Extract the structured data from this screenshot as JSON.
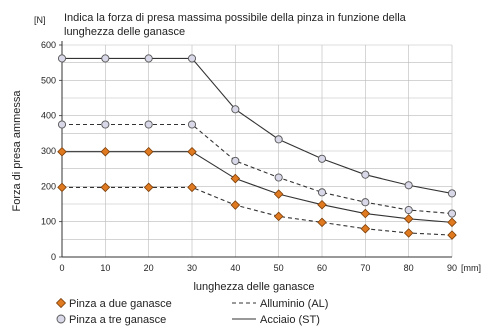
{
  "chart_data": {
    "type": "line",
    "title_lines": [
      "Indica la forza di presa massima possibile della pinza in funzione della",
      "lunghezza delle ganasce"
    ],
    "y_unit": "[N]",
    "x_unit": "[mm]",
    "xlabel": "lunghezza delle ganasce",
    "ylabel": "Forza di presa ammessa",
    "x": [
      0,
      10,
      20,
      30,
      40,
      50,
      60,
      70,
      80,
      90
    ],
    "xlim": [
      0,
      90
    ],
    "ylim": [
      0,
      600
    ],
    "x_ticks": [
      "0",
      "10",
      "20",
      "30",
      "40",
      "50",
      "60",
      "70",
      "80",
      "90"
    ],
    "y_ticks": [
      "0",
      "100",
      "200",
      "300",
      "400",
      "500",
      "600"
    ],
    "grid": true,
    "series": [
      {
        "gripper": "Pinza a tre ganasce",
        "material": "Acciaio (ST)",
        "marker": "circle",
        "line": "solid",
        "marker_color": "#d8d8e8",
        "values": [
          562,
          562,
          562,
          562,
          418,
          333,
          278,
          233,
          203,
          180
        ]
      },
      {
        "gripper": "Pinza a tre ganasce",
        "material": "Alluminio (AL)",
        "marker": "circle",
        "line": "dashed",
        "marker_color": "#d8d8e8",
        "values": [
          375,
          375,
          375,
          375,
          272,
          225,
          183,
          155,
          133,
          123
        ]
      },
      {
        "gripper": "Pinza a due ganasce",
        "material": "Acciaio (ST)",
        "marker": "diamond",
        "line": "solid",
        "marker_color": "#e07a20",
        "values": [
          298,
          298,
          298,
          298,
          222,
          178,
          148,
          123,
          108,
          98
        ]
      },
      {
        "gripper": "Pinza a due ganasce",
        "material": "Alluminio (AL)",
        "marker": "diamond",
        "line": "dashed",
        "marker_color": "#e07a20",
        "values": [
          197,
          197,
          197,
          197,
          147,
          115,
          98,
          80,
          68,
          62
        ]
      }
    ],
    "legend": {
      "position": "bottom",
      "items": [
        {
          "label": "Pinza a due ganasce",
          "symbol": "diamond"
        },
        {
          "label": "Alluminio (AL)",
          "symbol": "dashed-line"
        },
        {
          "label": "Pinza a tre ganasce",
          "symbol": "circle"
        },
        {
          "label": "Acciaio (ST)",
          "symbol": "solid-line"
        }
      ]
    },
    "colors": {
      "line": "#333333",
      "grid": "#bbbbbb",
      "diamond_fill": "#e07a20",
      "diamond_stroke": "#7a3d08",
      "circle_fill": "#d8d8e8",
      "circle_stroke": "#555555"
    }
  }
}
